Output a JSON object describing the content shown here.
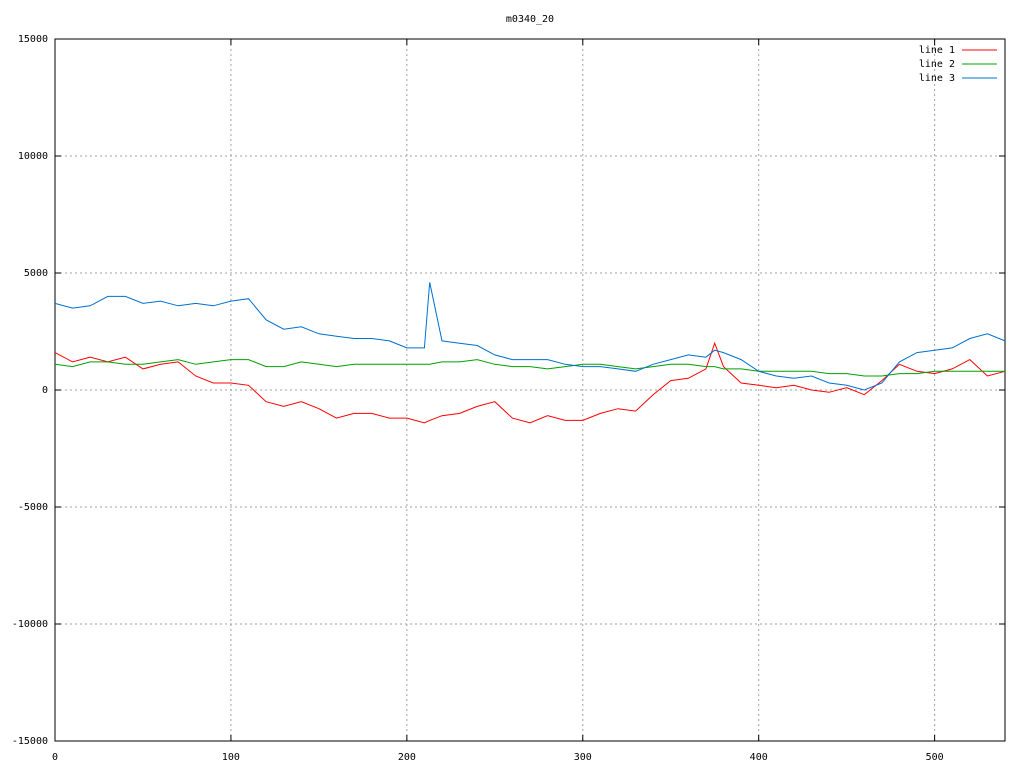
{
  "chart_data": {
    "type": "line",
    "title": "m0340_20",
    "x": [
      0,
      10,
      20,
      30,
      40,
      50,
      60,
      70,
      80,
      90,
      100,
      110,
      120,
      130,
      140,
      150,
      160,
      170,
      180,
      190,
      200,
      210,
      213,
      220,
      230,
      240,
      250,
      260,
      270,
      280,
      290,
      300,
      310,
      320,
      330,
      340,
      350,
      360,
      370,
      375,
      380,
      390,
      400,
      410,
      420,
      430,
      440,
      450,
      460,
      470,
      480,
      490,
      500,
      510,
      520,
      530,
      540
    ],
    "series": [
      {
        "name": "line 1",
        "color": "#ff0000",
        "values": [
          1600,
          1200,
          1400,
          1200,
          1400,
          900,
          1100,
          1200,
          600,
          300,
          300,
          200,
          -500,
          -700,
          -500,
          -800,
          -1200,
          -1000,
          -1000,
          -1200,
          -1200,
          -1400,
          -1300,
          -1100,
          -1000,
          -700,
          -500,
          -1200,
          -1400,
          -1100,
          -1300,
          -1300,
          -1000,
          -800,
          -900,
          -200,
          400,
          500,
          900,
          2000,
          1000,
          300,
          200,
          100,
          200,
          0,
          -100,
          100,
          -200,
          400,
          1100,
          800,
          700,
          900,
          1300,
          600,
          800
        ]
      },
      {
        "name": "line 2",
        "color": "#00a000",
        "values": [
          1100,
          1000,
          1200,
          1200,
          1100,
          1100,
          1200,
          1300,
          1100,
          1200,
          1300,
          1300,
          1000,
          1000,
          1200,
          1100,
          1000,
          1100,
          1100,
          1100,
          1100,
          1100,
          1100,
          1200,
          1200,
          1300,
          1100,
          1000,
          1000,
          900,
          1000,
          1100,
          1100,
          1000,
          900,
          1000,
          1100,
          1100,
          1000,
          1000,
          900,
          900,
          800,
          800,
          800,
          800,
          700,
          700,
          600,
          600,
          700,
          700,
          800,
          800,
          800,
          800,
          800
        ]
      },
      {
        "name": "line 3",
        "color": "#0070d0",
        "values": [
          3700,
          3500,
          3600,
          4000,
          4000,
          3700,
          3800,
          3600,
          3700,
          3600,
          3800,
          3900,
          3000,
          2600,
          2700,
          2400,
          2300,
          2200,
          2200,
          2100,
          1800,
          1800,
          4600,
          2100,
          2000,
          1900,
          1500,
          1300,
          1300,
          1300,
          1100,
          1000,
          1000,
          900,
          800,
          1100,
          1300,
          1500,
          1400,
          1700,
          1600,
          1300,
          800,
          600,
          500,
          600,
          300,
          200,
          0,
          300,
          1200,
          1600,
          1700,
          1800,
          2200,
          2400,
          2100
        ]
      }
    ],
    "xlim": [
      0,
      540
    ],
    "xticks": [
      0,
      100,
      200,
      300,
      400,
      500
    ],
    "ylim": [
      -15000,
      15000
    ],
    "yticks": [
      -15000,
      -10000,
      -5000,
      0,
      5000,
      10000,
      15000
    ],
    "grid": true
  }
}
